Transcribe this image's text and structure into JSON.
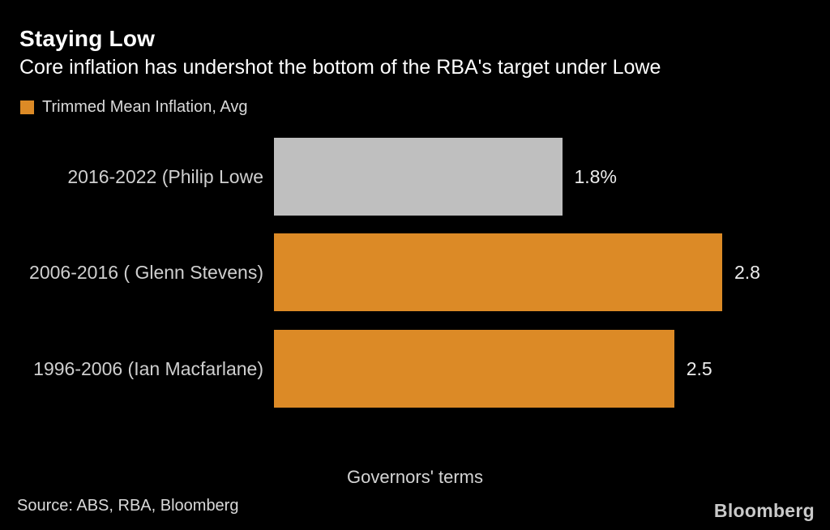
{
  "header": {
    "title": "Staying Low",
    "subtitle": "Core inflation has undershot the bottom of the RBA's target under Lowe"
  },
  "legend": {
    "label": "Trimmed Mean Inflation, Avg"
  },
  "chart_data": {
    "type": "bar",
    "orientation": "horizontal",
    "title": "Staying Low",
    "subtitle": "Core inflation has undershot the bottom of the RBA's target under Lowe",
    "series_name": "Trimmed Mean Inflation, Avg",
    "categories": [
      "2016-2022 (Philip Lowe",
      "2006-2016 ( Glenn Stevens)",
      "1996-2006 (Ian Macfarlane)"
    ],
    "values": [
      1.8,
      2.8,
      2.5
    ],
    "value_labels": [
      "1.8%",
      "2.8",
      "2.5"
    ],
    "bar_colors": [
      "#bfbfbf",
      "#dc8a26",
      "#dc8a26"
    ],
    "xlabel": "Governors' terms",
    "xlim": [
      0,
      2.8
    ],
    "grid": false,
    "legend_position": "top-left"
  },
  "footer": {
    "source": "Source: ABS, RBA, Bloomberg",
    "logo": "Bloomberg"
  },
  "colors": {
    "background": "#000000",
    "accent_orange": "#dc8a26",
    "muted_gray_bar": "#bfbfbf",
    "title_text": "#ffffff",
    "label_text": "#cfcfcf"
  }
}
